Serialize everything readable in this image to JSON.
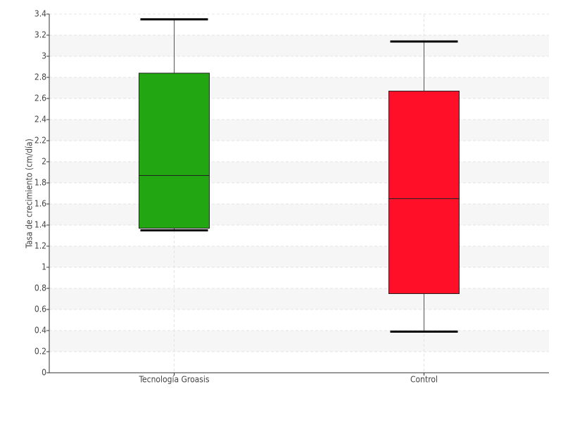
{
  "chart_data": {
    "type": "box",
    "y_label": "Tasa de crecimiento (cm/día)",
    "categories": [
      "Tecnología Groasis",
      "Control"
    ],
    "boxes": [
      {
        "min": 1.35,
        "q1": 1.37,
        "median": 1.87,
        "q3": 2.84,
        "max": 3.35,
        "color": "#22a612"
      },
      {
        "min": 0.39,
        "q1": 0.75,
        "median": 1.65,
        "q3": 2.67,
        "max": 3.14,
        "color": "#ff0f28"
      }
    ],
    "ylim": [
      0,
      3.4
    ],
    "yticks": [
      0,
      0.2,
      0.4,
      0.6,
      0.8,
      1,
      1.2,
      1.4,
      1.6,
      1.8,
      2,
      2.2,
      2.4,
      2.6,
      2.8,
      3,
      3.2,
      3.4
    ],
    "grid": true
  }
}
